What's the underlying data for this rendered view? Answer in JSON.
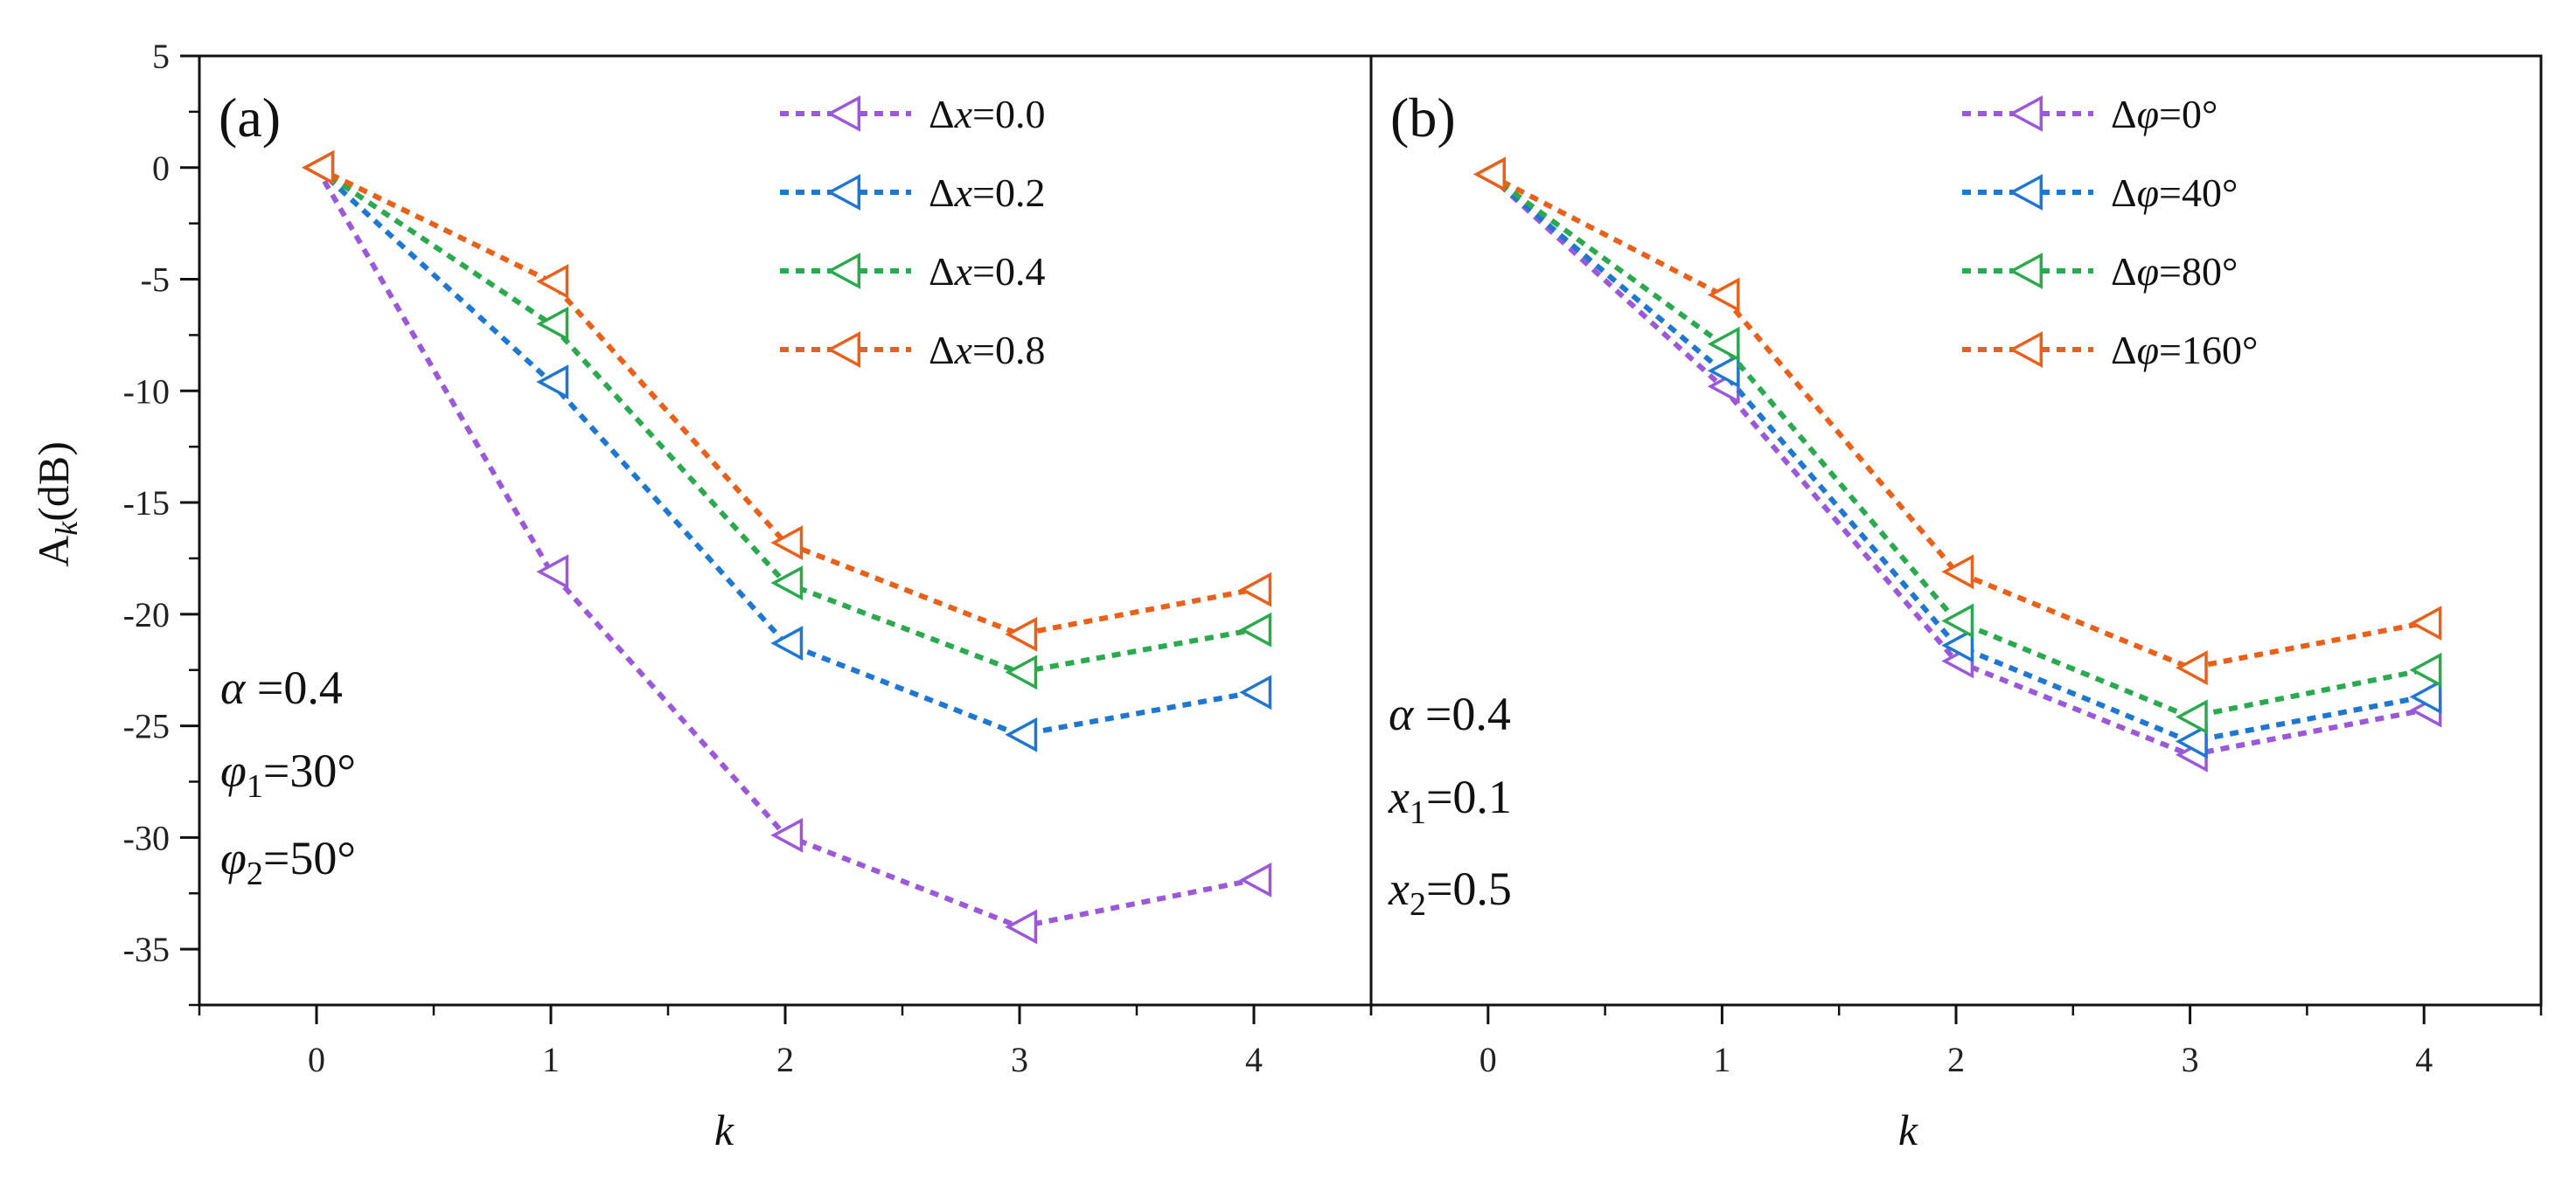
{
  "chart_data": [
    {
      "type": "line",
      "panel_label": "(a)",
      "xlabel": "k",
      "ylabel": "A",
      "ylabel_sub": "k",
      "ylabel_unit": "(dB)",
      "x": [
        0,
        1,
        2,
        3,
        4
      ],
      "xticks": [
        "0",
        "1",
        "2",
        "3",
        "4"
      ],
      "xlim": [
        -0.5,
        4.5
      ],
      "ylim": [
        -37.5,
        5
      ],
      "yticks": [
        "5",
        "0",
        "-5",
        "-10",
        "-15",
        "-20",
        "-25",
        "-30",
        "-35"
      ],
      "series": [
        {
          "name": "Δx=0.0",
          "prefix": "Δ",
          "var": "x",
          "suffix": "=0.0",
          "color": "#9b59d9",
          "values": [
            0,
            -18.1,
            -29.9,
            -34.0,
            -31.9
          ]
        },
        {
          "name": "Δx=0.2",
          "prefix": "Δ",
          "var": "x",
          "suffix": "=0.2",
          "color": "#1f77d0",
          "values": [
            0,
            -9.6,
            -21.3,
            -25.4,
            -23.5
          ]
        },
        {
          "name": "Δx=0.4",
          "prefix": "Δ",
          "var": "x",
          "suffix": "=0.4",
          "color": "#2ca84f",
          "values": [
            0,
            -7.0,
            -18.6,
            -22.6,
            -20.7
          ]
        },
        {
          "name": "Δx=0.8",
          "prefix": "Δ",
          "var": "x",
          "suffix": "=0.8",
          "color": "#e8611a",
          "values": [
            0,
            -5.1,
            -16.8,
            -20.9,
            -18.9
          ]
        }
      ],
      "annotations": [
        {
          "sym": "α",
          "sub": "",
          "val": " =0.4"
        },
        {
          "sym": "φ",
          "sub": "1",
          "val": "=30°"
        },
        {
          "sym": "φ",
          "sub": "2",
          "val": "=50°"
        }
      ]
    },
    {
      "type": "line",
      "panel_label": "(b)",
      "xlabel": "k",
      "x": [
        0,
        1,
        2,
        3,
        4
      ],
      "xticks": [
        "0",
        "1",
        "2",
        "3",
        "4"
      ],
      "xlim": [
        -0.5,
        4.5
      ],
      "ylim": [
        -37.5,
        5
      ],
      "series": [
        {
          "name": "Δφ=0°",
          "prefix": "Δ",
          "var": "φ",
          "suffix": "=0°",
          "color": "#9b59d9",
          "values": [
            -0.3,
            -9.8,
            -22.1,
            -26.3,
            -24.3
          ]
        },
        {
          "name": "Δφ=40°",
          "prefix": "Δ",
          "var": "φ",
          "suffix": "=40°",
          "color": "#1f77d0",
          "values": [
            -0.3,
            -9.1,
            -21.4,
            -25.7,
            -23.7
          ]
        },
        {
          "name": "Δφ=80°",
          "prefix": "Δ",
          "var": "φ",
          "suffix": "=80°",
          "color": "#2ca84f",
          "values": [
            -0.3,
            -7.9,
            -20.3,
            -24.6,
            -22.5
          ]
        },
        {
          "name": "Δφ=160°",
          "prefix": "Δ",
          "var": "φ",
          "suffix": "=160°",
          "color": "#e8611a",
          "values": [
            -0.3,
            -5.7,
            -18.1,
            -22.4,
            -20.4
          ]
        }
      ],
      "annotations": [
        {
          "sym": "α",
          "sub": "",
          "val": " =0.4"
        },
        {
          "sym": "x",
          "sub": "1",
          "val": "=0.1"
        },
        {
          "sym": "x",
          "sub": "2",
          "val": "=0.5"
        }
      ]
    }
  ]
}
